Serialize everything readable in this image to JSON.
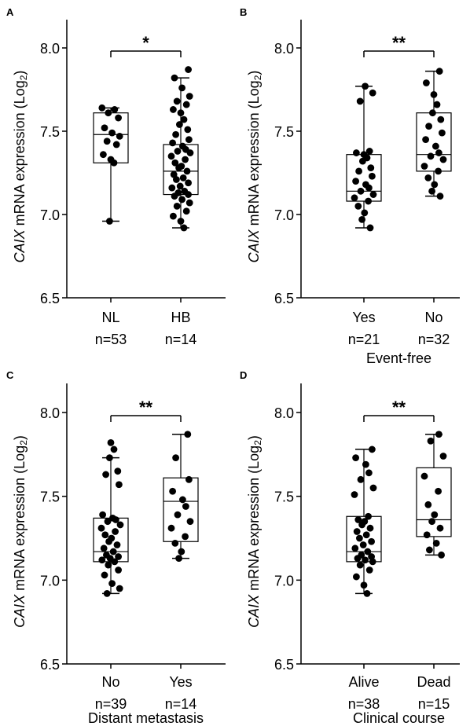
{
  "chart_data": [
    {
      "panel_label": "A",
      "type": "boxplot",
      "ylabel_italic": "CAIX",
      "ylabel_rest": " mRNA expression (Log",
      "ylabel_sub": "2",
      "ylabel_close": ")",
      "ylim": [
        6.5,
        8.15
      ],
      "yticks": [
        "6.5",
        "7.0",
        "7.5",
        "8.0"
      ],
      "xlabel": "",
      "significance": "*",
      "groups": [
        {
          "name": "NL",
          "n_label": "n=53",
          "box": {
            "min": 6.96,
            "q1": 7.31,
            "median": 7.48,
            "q3": 7.61,
            "max": 7.64
          },
          "points": [
            7.64,
            7.63,
            7.61,
            7.58,
            7.52,
            7.49,
            7.47,
            7.44,
            7.42,
            7.36,
            7.33,
            7.31,
            6.96
          ]
        },
        {
          "name": "HB",
          "n_label": "n=14",
          "box": {
            "min": 6.92,
            "q1": 7.12,
            "median": 7.26,
            "q3": 7.42,
            "max": 7.82
          },
          "points": [
            7.87,
            7.82,
            7.76,
            7.71,
            7.68,
            7.66,
            7.63,
            7.61,
            7.57,
            7.54,
            7.51,
            7.48,
            7.45,
            7.43,
            7.41,
            7.39,
            7.38,
            7.37,
            7.35,
            7.33,
            7.31,
            7.29,
            7.28,
            7.26,
            7.24,
            7.22,
            7.21,
            7.19,
            7.17,
            7.16,
            7.14,
            7.13,
            7.12,
            7.11,
            7.09,
            7.07,
            7.05,
            7.02,
            6.99,
            6.96,
            6.92
          ]
        }
      ]
    },
    {
      "panel_label": "B",
      "type": "boxplot",
      "ylabel_italic": "CAIX",
      "ylabel_rest": " mRNA expression (Log",
      "ylabel_sub": "2",
      "ylabel_close": ")",
      "ylim": [
        6.5,
        8.15
      ],
      "yticks": [
        "6.5",
        "7.0",
        "7.5",
        "8.0"
      ],
      "xlabel": "Event-free",
      "significance": "**",
      "groups": [
        {
          "name": "Yes",
          "n_label": "n=21",
          "box": {
            "min": 6.92,
            "q1": 7.08,
            "median": 7.14,
            "q3": 7.36,
            "max": 7.77
          },
          "points": [
            7.77,
            7.73,
            7.68,
            7.38,
            7.37,
            7.36,
            7.34,
            7.32,
            7.28,
            7.26,
            7.23,
            7.2,
            7.18,
            7.16,
            7.14,
            7.12,
            7.1,
            7.08,
            7.05,
            7.01,
            6.97,
            6.92
          ]
        },
        {
          "name": "No",
          "n_label": "n=32",
          "box": {
            "min": 7.11,
            "q1": 7.26,
            "median": 7.36,
            "q3": 7.61,
            "max": 7.86
          },
          "points": [
            7.86,
            7.79,
            7.72,
            7.66,
            7.61,
            7.57,
            7.53,
            7.49,
            7.45,
            7.41,
            7.37,
            7.35,
            7.33,
            7.29,
            7.26,
            7.22,
            7.18,
            7.14,
            7.11
          ]
        }
      ]
    },
    {
      "panel_label": "C",
      "type": "boxplot",
      "ylabel_italic": "CAIX",
      "ylabel_rest": " mRNA expression (Log",
      "ylabel_sub": "2",
      "ylabel_close": ")",
      "ylim": [
        6.5,
        8.15
      ],
      "yticks": [
        "6.5",
        "7.0",
        "7.5",
        "8.0"
      ],
      "xlabel": "Distant metastasis",
      "significance": "**",
      "groups": [
        {
          "name": "No",
          "n_label": "n=39",
          "box": {
            "min": 6.92,
            "q1": 7.11,
            "median": 7.17,
            "q3": 7.37,
            "max": 7.73
          },
          "points": [
            7.82,
            7.78,
            7.73,
            7.65,
            7.63,
            7.57,
            7.39,
            7.37,
            7.36,
            7.35,
            7.33,
            7.31,
            7.29,
            7.27,
            7.25,
            7.23,
            7.21,
            7.19,
            7.17,
            7.15,
            7.14,
            7.13,
            7.12,
            7.11,
            7.09,
            7.06,
            7.03,
            6.98,
            6.95,
            6.92
          ]
        },
        {
          "name": "Yes",
          "n_label": "n=14",
          "box": {
            "min": 7.13,
            "q1": 7.23,
            "median": 7.47,
            "q3": 7.61,
            "max": 7.87
          },
          "points": [
            7.87,
            7.73,
            7.6,
            7.53,
            7.48,
            7.44,
            7.39,
            7.35,
            7.31,
            7.26,
            7.22,
            7.17,
            7.13
          ]
        }
      ]
    },
    {
      "panel_label": "D",
      "type": "boxplot",
      "ylabel_italic": "CAIX",
      "ylabel_rest": " mRNA expression (Log",
      "ylabel_sub": "2",
      "ylabel_close": ")",
      "ylim": [
        6.5,
        8.15
      ],
      "yticks": [
        "6.5",
        "7.0",
        "7.5",
        "8.0"
      ],
      "xlabel": "Clinical course",
      "significance": "**",
      "groups": [
        {
          "name": "Alive",
          "n_label": "n=38",
          "box": {
            "min": 6.92,
            "q1": 7.11,
            "median": 7.17,
            "q3": 7.38,
            "max": 7.78
          },
          "points": [
            7.78,
            7.73,
            7.69,
            7.64,
            7.6,
            7.55,
            7.51,
            7.38,
            7.36,
            7.35,
            7.33,
            7.31,
            7.29,
            7.27,
            7.25,
            7.23,
            7.21,
            7.19,
            7.17,
            7.15,
            7.14,
            7.13,
            7.12,
            7.11,
            7.09,
            7.06,
            7.02,
            6.97,
            6.92
          ]
        },
        {
          "name": "Dead",
          "n_label": "n=15",
          "box": {
            "min": 7.15,
            "q1": 7.26,
            "median": 7.36,
            "q3": 7.67,
            "max": 7.87
          },
          "points": [
            7.87,
            7.83,
            7.74,
            7.62,
            7.53,
            7.45,
            7.39,
            7.35,
            7.31,
            7.27,
            7.22,
            7.18,
            7.15
          ]
        }
      ]
    }
  ]
}
